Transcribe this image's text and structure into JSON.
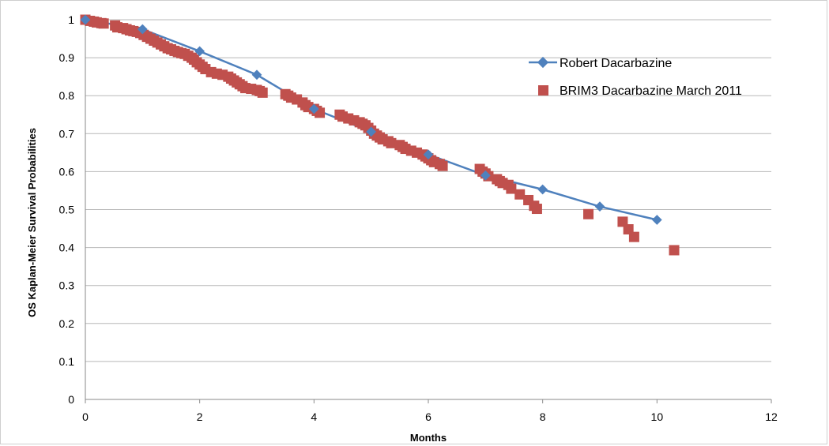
{
  "chart_data": {
    "type": "scatter",
    "xlabel": "Months",
    "ylabel": "OS Kaplan-Meier Survival Probabilities",
    "xlim": [
      0,
      12
    ],
    "ylim": [
      0,
      1
    ],
    "xticks": [
      "0",
      "2",
      "4",
      "6",
      "8",
      "10",
      "12"
    ],
    "yticks": [
      "0",
      "0.1",
      "0.2",
      "0.3",
      "0.4",
      "0.5",
      "0.6",
      "0.7",
      "0.8",
      "0.9",
      "1"
    ],
    "grid": "horizontal",
    "legend_position": "right",
    "series": [
      {
        "name": "Robert Dacarbazine",
        "marker": "diamond",
        "line": true,
        "color": "#4f81bd",
        "x": [
          0,
          1,
          2,
          3,
          4,
          5,
          6,
          7,
          8,
          9,
          10
        ],
        "y": [
          1.0,
          0.975,
          0.917,
          0.855,
          0.765,
          0.705,
          0.645,
          0.59,
          0.553,
          0.508,
          0.473
        ]
      },
      {
        "name": "BRIM3 Dacarbazine March 2011",
        "marker": "square",
        "line": false,
        "color": "#c0504d",
        "x": [
          0.0,
          0.08,
          0.15,
          0.2,
          0.28,
          0.32,
          0.52,
          0.56,
          0.66,
          0.72,
          0.78,
          0.84,
          0.9,
          0.96,
          1.02,
          1.08,
          1.14,
          1.2,
          1.26,
          1.32,
          1.38,
          1.44,
          1.5,
          1.56,
          1.62,
          1.68,
          1.74,
          1.8,
          1.86,
          1.9,
          1.95,
          2.0,
          2.05,
          2.1,
          2.2,
          2.3,
          2.4,
          2.5,
          2.55,
          2.6,
          2.65,
          2.7,
          2.75,
          2.8,
          2.9,
          3.0,
          3.05,
          3.1,
          3.5,
          3.55,
          3.6,
          3.7,
          3.8,
          3.85,
          3.9,
          4.0,
          4.05,
          4.1,
          4.45,
          4.5,
          4.6,
          4.7,
          4.8,
          4.85,
          4.9,
          4.95,
          5.0,
          5.05,
          5.1,
          5.15,
          5.2,
          5.3,
          5.35,
          5.5,
          5.55,
          5.6,
          5.7,
          5.8,
          5.9,
          5.95,
          6.0,
          6.05,
          6.1,
          6.2,
          6.25,
          6.9,
          6.95,
          7.0,
          7.05,
          7.2,
          7.25,
          7.3,
          7.4,
          7.45,
          7.6,
          7.75,
          7.85,
          7.9,
          8.8,
          9.4,
          9.5,
          9.6,
          10.3
        ],
        "y": [
          1.0,
          0.997,
          0.995,
          0.993,
          0.991,
          0.99,
          0.985,
          0.98,
          0.978,
          0.975,
          0.972,
          0.97,
          0.968,
          0.965,
          0.96,
          0.955,
          0.95,
          0.945,
          0.94,
          0.935,
          0.93,
          0.925,
          0.922,
          0.918,
          0.915,
          0.912,
          0.91,
          0.905,
          0.9,
          0.895,
          0.888,
          0.882,
          0.876,
          0.87,
          0.862,
          0.858,
          0.855,
          0.85,
          0.845,
          0.84,
          0.835,
          0.83,
          0.825,
          0.82,
          0.818,
          0.815,
          0.812,
          0.808,
          0.804,
          0.8,
          0.795,
          0.79,
          0.782,
          0.775,
          0.77,
          0.765,
          0.76,
          0.755,
          0.75,
          0.745,
          0.74,
          0.735,
          0.73,
          0.726,
          0.722,
          0.715,
          0.708,
          0.7,
          0.695,
          0.69,
          0.685,
          0.68,
          0.675,
          0.67,
          0.665,
          0.66,
          0.655,
          0.65,
          0.645,
          0.64,
          0.635,
          0.63,
          0.625,
          0.62,
          0.615,
          0.607,
          0.6,
          0.595,
          0.588,
          0.58,
          0.575,
          0.57,
          0.565,
          0.555,
          0.54,
          0.525,
          0.51,
          0.502,
          0.488,
          0.468,
          0.448,
          0.428,
          0.393
        ]
      }
    ]
  }
}
